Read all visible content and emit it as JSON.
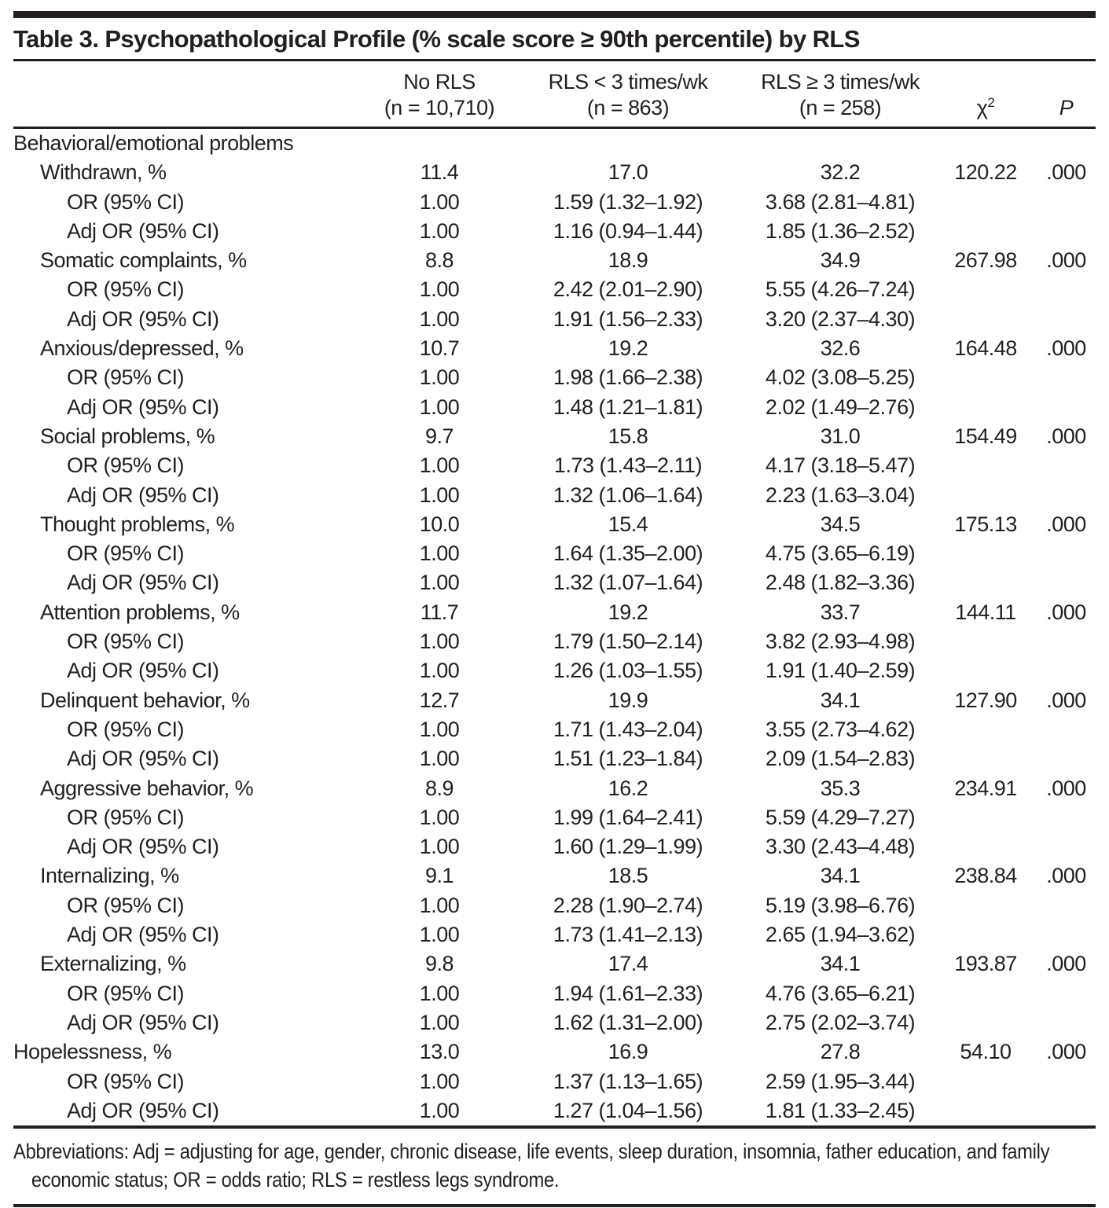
{
  "title": "Table 3. Psychopathological Profile (% scale score ≥ 90th percentile) by RLS",
  "columns": {
    "no_rls": {
      "line1": "No RLS",
      "line2": "(n = 10,710)"
    },
    "rls_lt3": {
      "line1": "RLS < 3 times/wk",
      "line2": "(n = 863)"
    },
    "rls_ge3": {
      "line1": "RLS ≥ 3 times/wk",
      "line2": "(n = 258)"
    },
    "chi_square": {
      "symbol": "χ",
      "superscript": "2"
    },
    "p": {
      "label": "P"
    }
  },
  "rows": [
    {
      "label": "Behavioral/emotional problems",
      "indent": 0,
      "values": [
        "",
        "",
        "",
        "",
        ""
      ]
    },
    {
      "label": "Withdrawn, %",
      "indent": 1,
      "values": [
        "11.4",
        "17.0",
        "32.2",
        "120.22",
        ".000"
      ]
    },
    {
      "label": "OR (95% CI)",
      "indent": 2,
      "values": [
        "1.00",
        "1.59 (1.32–1.92)",
        "3.68 (2.81–4.81)",
        "",
        ""
      ]
    },
    {
      "label": "Adj OR (95% CI)",
      "indent": 2,
      "values": [
        "1.00",
        "1.16 (0.94–1.44)",
        "1.85 (1.36–2.52)",
        "",
        ""
      ]
    },
    {
      "label": "Somatic complaints, %",
      "indent": 1,
      "values": [
        "8.8",
        "18.9",
        "34.9",
        "267.98",
        ".000"
      ]
    },
    {
      "label": "OR (95% CI)",
      "indent": 2,
      "values": [
        "1.00",
        "2.42 (2.01–2.90)",
        "5.55 (4.26–7.24)",
        "",
        ""
      ]
    },
    {
      "label": "Adj OR (95% CI)",
      "indent": 2,
      "values": [
        "1.00",
        "1.91 (1.56–2.33)",
        "3.20 (2.37–4.30)",
        "",
        ""
      ]
    },
    {
      "label": "Anxious/depressed, %",
      "indent": 1,
      "values": [
        "10.7",
        "19.2",
        "32.6",
        "164.48",
        ".000"
      ]
    },
    {
      "label": "OR (95% CI)",
      "indent": 2,
      "values": [
        "1.00",
        "1.98 (1.66–2.38)",
        "4.02 (3.08–5.25)",
        "",
        ""
      ]
    },
    {
      "label": "Adj OR (95% CI)",
      "indent": 2,
      "values": [
        "1.00",
        "1.48 (1.21–1.81)",
        "2.02 (1.49–2.76)",
        "",
        ""
      ]
    },
    {
      "label": "Social problems, %",
      "indent": 1,
      "values": [
        "9.7",
        "15.8",
        "31.0",
        "154.49",
        ".000"
      ]
    },
    {
      "label": "OR (95% CI)",
      "indent": 2,
      "values": [
        "1.00",
        "1.73 (1.43–2.11)",
        "4.17 (3.18–5.47)",
        "",
        ""
      ]
    },
    {
      "label": "Adj OR (95% CI)",
      "indent": 2,
      "values": [
        "1.00",
        "1.32 (1.06–1.64)",
        "2.23 (1.63–3.04)",
        "",
        ""
      ]
    },
    {
      "label": "Thought problems, %",
      "indent": 1,
      "values": [
        "10.0",
        "15.4",
        "34.5",
        "175.13",
        ".000"
      ]
    },
    {
      "label": "OR (95% CI)",
      "indent": 2,
      "values": [
        "1.00",
        "1.64 (1.35–2.00)",
        "4.75 (3.65–6.19)",
        "",
        ""
      ]
    },
    {
      "label": "Adj OR (95% CI)",
      "indent": 2,
      "values": [
        "1.00",
        "1.32 (1.07–1.64)",
        "2.48 (1.82–3.36)",
        "",
        ""
      ]
    },
    {
      "label": "Attention problems, %",
      "indent": 1,
      "values": [
        "11.7",
        "19.2",
        "33.7",
        "144.11",
        ".000"
      ]
    },
    {
      "label": "OR (95% CI)",
      "indent": 2,
      "values": [
        "1.00",
        "1.79 (1.50–2.14)",
        "3.82 (2.93–4.98)",
        "",
        ""
      ]
    },
    {
      "label": "Adj OR (95% CI)",
      "indent": 2,
      "values": [
        "1.00",
        "1.26 (1.03–1.55)",
        "1.91 (1.40–2.59)",
        "",
        ""
      ]
    },
    {
      "label": "Delinquent behavior, %",
      "indent": 1,
      "values": [
        "12.7",
        "19.9",
        "34.1",
        "127.90",
        ".000"
      ]
    },
    {
      "label": "OR (95% CI)",
      "indent": 2,
      "values": [
        "1.00",
        "1.71 (1.43–2.04)",
        "3.55 (2.73–4.62)",
        "",
        ""
      ]
    },
    {
      "label": "Adj OR (95% CI)",
      "indent": 2,
      "values": [
        "1.00",
        "1.51 (1.23–1.84)",
        "2.09 (1.54–2.83)",
        "",
        ""
      ]
    },
    {
      "label": "Aggressive behavior, %",
      "indent": 1,
      "values": [
        "8.9",
        "16.2",
        "35.3",
        "234.91",
        ".000"
      ]
    },
    {
      "label": "OR (95% CI)",
      "indent": 2,
      "values": [
        "1.00",
        "1.99 (1.64–2.41)",
        "5.59 (4.29–7.27)",
        "",
        ""
      ]
    },
    {
      "label": "Adj OR (95% CI)",
      "indent": 2,
      "values": [
        "1.00",
        "1.60 (1.29–1.99)",
        "3.30 (2.43–4.48)",
        "",
        ""
      ]
    },
    {
      "label": "Internalizing, %",
      "indent": 1,
      "values": [
        "9.1",
        "18.5",
        "34.1",
        "238.84",
        ".000"
      ]
    },
    {
      "label": "OR (95% CI)",
      "indent": 2,
      "values": [
        "1.00",
        "2.28 (1.90–2.74)",
        "5.19 (3.98–6.76)",
        "",
        ""
      ]
    },
    {
      "label": "Adj OR (95% CI)",
      "indent": 2,
      "values": [
        "1.00",
        "1.73 (1.41–2.13)",
        "2.65 (1.94–3.62)",
        "",
        ""
      ]
    },
    {
      "label": "Externalizing, %",
      "indent": 1,
      "values": [
        "9.8",
        "17.4",
        "34.1",
        "193.87",
        ".000"
      ]
    },
    {
      "label": "OR (95% CI)",
      "indent": 2,
      "values": [
        "1.00",
        "1.94 (1.61–2.33)",
        "4.76 (3.65–6.21)",
        "",
        ""
      ]
    },
    {
      "label": "Adj OR (95% CI)",
      "indent": 2,
      "values": [
        "1.00",
        "1.62 (1.31–2.00)",
        "2.75 (2.02–3.74)",
        "",
        ""
      ]
    },
    {
      "label": "Hopelessness, %",
      "indent": 0,
      "values": [
        "13.0",
        "16.9",
        "27.8",
        "54.10",
        ".000"
      ]
    },
    {
      "label": "OR (95% CI)",
      "indent": 2,
      "values": [
        "1.00",
        "1.37 (1.13–1.65)",
        "2.59 (1.95–3.44)",
        "",
        ""
      ]
    },
    {
      "label": "Adj OR (95% CI)",
      "indent": 2,
      "values": [
        "1.00",
        "1.27 (1.04–1.56)",
        "1.81 (1.33–2.45)",
        "",
        ""
      ]
    }
  ],
  "footnote": "Abbreviations: Adj = adjusting for age, gender, chronic disease, life events, sleep duration, insomnia, father education, and family economic status; OR = odds ratio; RLS = restless legs syndrome."
}
